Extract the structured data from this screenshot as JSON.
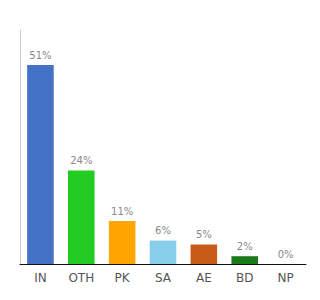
{
  "chart_data": {
    "type": "bar",
    "categories": [
      "IN",
      "OTH",
      "PK",
      "SA",
      "AE",
      "BD",
      "NP"
    ],
    "values": [
      51,
      24,
      11,
      6,
      5,
      2,
      0
    ],
    "value_labels": [
      "51%",
      "24%",
      "11%",
      "6%",
      "5%",
      "2%",
      "0%"
    ],
    "colors": [
      "#4472C4",
      "#22CC22",
      "#FFA500",
      "#87CEEB",
      "#C85A1A",
      "#1A7A1A",
      "#4472C4"
    ],
    "ylim": [
      0,
      60
    ],
    "tick_labels": "x",
    "grid": false,
    "data_labels": true
  }
}
